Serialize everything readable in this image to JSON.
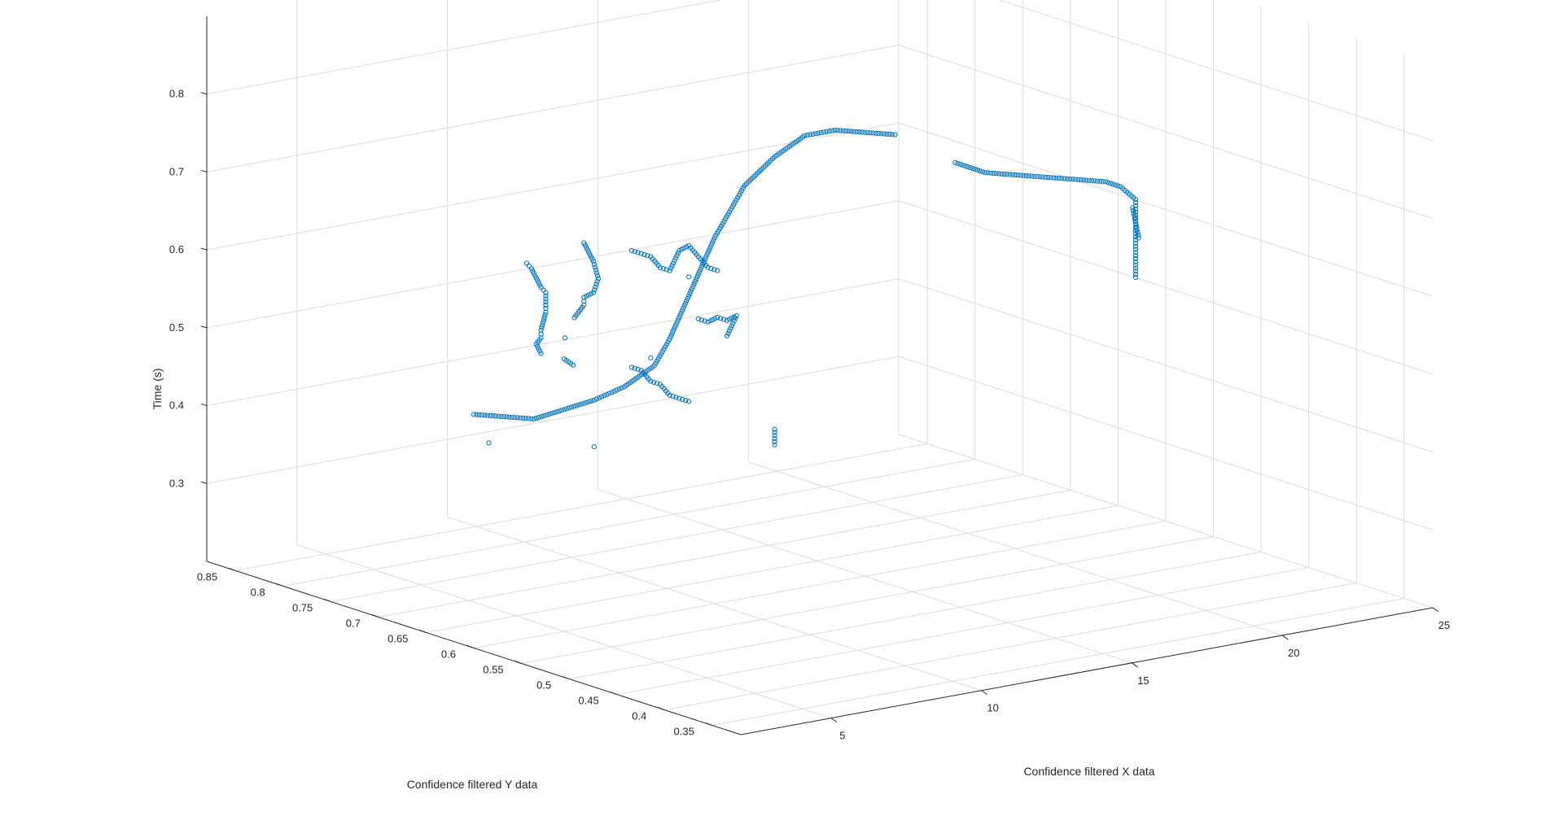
{
  "chart_data": {
    "type": "scatter",
    "xlabel": "Confidence filtered X data",
    "ylabel": "Confidence filtered Y data",
    "zlabel": "Time (s)",
    "x_ticks": [
      "5",
      "10",
      "15",
      "20",
      "25"
    ],
    "y_ticks": [
      "0.35",
      "0.4",
      "0.45",
      "0.5",
      "0.55",
      "0.6",
      "0.65",
      "0.7",
      "0.75",
      "0.8",
      "0.85"
    ],
    "z_ticks": [
      "0.3",
      "0.4",
      "0.5",
      "0.6",
      "0.7",
      "0.8"
    ],
    "xlim": [
      2,
      25
    ],
    "ylim": [
      0.32,
      0.88
    ],
    "zlim": [
      0.2,
      0.9
    ],
    "grid": true,
    "marker": "open circle",
    "marker_color": "#0072BD",
    "series": [
      {
        "points": [
          [
            12.0,
            0.86,
            0.52
          ],
          [
            12.0,
            0.855,
            0.515
          ],
          [
            12.0,
            0.85,
            0.505
          ],
          [
            12.0,
            0.845,
            0.495
          ],
          [
            12.0,
            0.84,
            0.49
          ],
          [
            12.0,
            0.84,
            0.47
          ],
          [
            12.0,
            0.84,
            0.465
          ],
          [
            12.0,
            0.845,
            0.44
          ],
          [
            12.0,
            0.845,
            0.43
          ],
          [
            12.0,
            0.85,
            0.42
          ],
          [
            12.0,
            0.845,
            0.41
          ],
          [
            12.0,
            0.8,
            0.57
          ],
          [
            12.0,
            0.79,
            0.55
          ],
          [
            12.0,
            0.785,
            0.53
          ],
          [
            12.0,
            0.79,
            0.51
          ],
          [
            12.0,
            0.8,
            0.5
          ],
          [
            12.0,
            0.8,
            0.49
          ],
          [
            12.0,
            0.81,
            0.47
          ],
          [
            12.0,
            0.75,
            0.58
          ],
          [
            12.0,
            0.74,
            0.58
          ],
          [
            12.0,
            0.73,
            0.58
          ],
          [
            12.0,
            0.72,
            0.57
          ],
          [
            12.0,
            0.71,
            0.57
          ],
          [
            12.0,
            0.7,
            0.6
          ],
          [
            12.0,
            0.69,
            0.61
          ],
          [
            12.0,
            0.68,
            0.6
          ],
          [
            12.0,
            0.67,
            0.59
          ],
          [
            12.0,
            0.66,
            0.59
          ],
          [
            12.0,
            0.75,
            0.43
          ],
          [
            12.0,
            0.74,
            0.43
          ],
          [
            12.0,
            0.73,
            0.42
          ],
          [
            12.0,
            0.72,
            0.42
          ],
          [
            12.0,
            0.71,
            0.41
          ],
          [
            12.0,
            0.7,
            0.41
          ],
          [
            12.0,
            0.69,
            0.41
          ],
          [
            12.0,
            0.68,
            0.52
          ],
          [
            12.0,
            0.67,
            0.52
          ],
          [
            12.0,
            0.66,
            0.53
          ],
          [
            12.0,
            0.65,
            0.53
          ],
          [
            12.0,
            0.64,
            0.54
          ],
          [
            12.0,
            0.65,
            0.51
          ],
          [
            12.0,
            0.6,
            0.41
          ],
          [
            12.0,
            0.6,
            0.39
          ],
          [
            12.0,
            0.73,
            0.45
          ],
          [
            12.0,
            0.69,
            0.57
          ],
          [
            12.0,
            0.82,
            0.44
          ],
          [
            2.0,
            0.6,
            0.5
          ],
          [
            3.0,
            0.6,
            0.49
          ],
          [
            4.0,
            0.6,
            0.48
          ],
          [
            5.0,
            0.6,
            0.485
          ],
          [
            6.0,
            0.6,
            0.49
          ],
          [
            7.0,
            0.6,
            0.5
          ],
          [
            8.0,
            0.6,
            0.52
          ],
          [
            8.5,
            0.6,
            0.55
          ],
          [
            9.0,
            0.6,
            0.59
          ],
          [
            9.5,
            0.6,
            0.63
          ],
          [
            10.0,
            0.6,
            0.67
          ],
          [
            10.5,
            0.6,
            0.7
          ],
          [
            11.0,
            0.6,
            0.73
          ],
          [
            12.0,
            0.6,
            0.76
          ],
          [
            13.0,
            0.6,
            0.78
          ],
          [
            14.0,
            0.6,
            0.78
          ],
          [
            15.0,
            0.6,
            0.77
          ],
          [
            16.0,
            0.6,
            0.76
          ],
          [
            5.0,
            0.6,
            0.55
          ],
          [
            5.3,
            0.6,
            0.54
          ],
          [
            6.0,
            0.6,
            0.43
          ],
          [
            2.5,
            0.6,
            0.46
          ],
          [
            18.0,
            0.6,
            0.71
          ],
          [
            19.0,
            0.6,
            0.69
          ],
          [
            20.0,
            0.6,
            0.68
          ],
          [
            21.0,
            0.6,
            0.67
          ],
          [
            22.0,
            0.6,
            0.66
          ],
          [
            23.0,
            0.6,
            0.65
          ],
          [
            23.5,
            0.6,
            0.64
          ],
          [
            24.0,
            0.6,
            0.62
          ],
          [
            24.0,
            0.6,
            0.6
          ],
          [
            24.0,
            0.6,
            0.58
          ],
          [
            24.0,
            0.6,
            0.56
          ],
          [
            24.0,
            0.6,
            0.54
          ],
          [
            24.0,
            0.6,
            0.52
          ],
          [
            23.9,
            0.6,
            0.61
          ],
          [
            24.1,
            0.6,
            0.57
          ]
        ]
      }
    ]
  }
}
